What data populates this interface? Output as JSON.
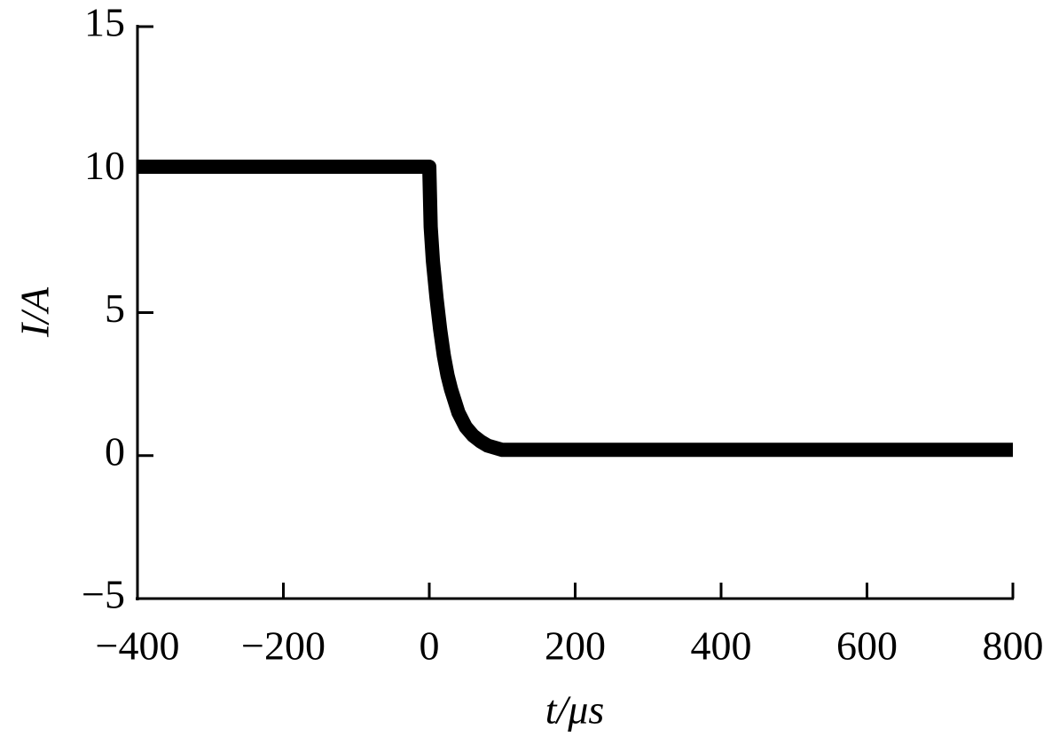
{
  "chart_data": {
    "type": "line",
    "xlabel": "t/μs",
    "ylabel": "I/A",
    "series": [
      {
        "color": "#000000",
        "x": [
          -400,
          -300,
          -200,
          -100,
          0,
          2,
          5,
          10,
          15,
          20,
          25,
          30,
          40,
          50,
          60,
          70,
          80,
          100,
          150,
          200,
          300,
          400,
          500,
          600,
          700,
          800
        ],
        "values": [
          10.1,
          10.1,
          10.1,
          10.1,
          10.1,
          8.0,
          6.8,
          5.5,
          4.4,
          3.5,
          2.8,
          2.3,
          1.5,
          1.0,
          0.7,
          0.5,
          0.35,
          0.2,
          0.2,
          0.2,
          0.2,
          0.2,
          0.2,
          0.2,
          0.2,
          0.2
        ]
      }
    ],
    "xlim": [
      -400,
      800
    ],
    "xticks": [
      {
        "value": -400,
        "label": "−400"
      },
      {
        "value": -200,
        "label": "−200"
      },
      0,
      200,
      400,
      800,
      600
    ],
    "ylim": [
      -5,
      15
    ],
    "yticks": [
      {
        "value": -5,
        "label": "−5"
      },
      0,
      5,
      10,
      15
    ]
  }
}
